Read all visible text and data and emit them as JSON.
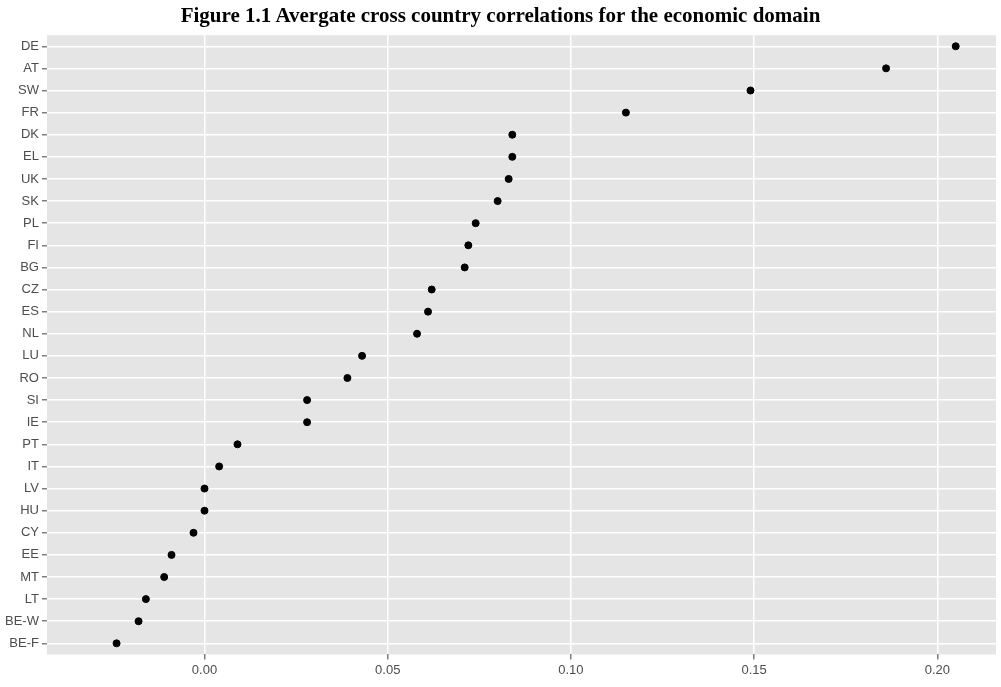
{
  "chart_data": {
    "type": "scatter",
    "title": "Figure 1.1 Avergate cross country correlations for the economic domain",
    "orientation": "horizontal",
    "categories": [
      "DE",
      "AT",
      "SW",
      "FR",
      "DK",
      "EL",
      "UK",
      "SK",
      "PL",
      "FI",
      "BG",
      "CZ",
      "ES",
      "NL",
      "LU",
      "RO",
      "SI",
      "IE",
      "PT",
      "IT",
      "LV",
      "HU",
      "CY",
      "EE",
      "MT",
      "LT",
      "BE-W",
      "BE-F"
    ],
    "values": [
      0.205,
      0.186,
      0.149,
      0.115,
      0.084,
      0.084,
      0.083,
      0.08,
      0.074,
      0.072,
      0.071,
      0.062,
      0.061,
      0.058,
      0.043,
      0.039,
      0.028,
      0.028,
      0.009,
      0.004,
      0.0,
      0.0,
      -0.003,
      -0.009,
      -0.011,
      -0.016,
      -0.018,
      -0.024
    ],
    "color": "#000000",
    "marker": "circle",
    "xlim": [
      -0.043,
      0.216
    ],
    "xticks": [
      {
        "value": 0,
        "label": "0.00"
      },
      {
        "value": 0.05,
        "label": "0.05"
      },
      {
        "value": 0.1,
        "label": "0.10"
      },
      {
        "value": 0.15,
        "label": "0.15"
      },
      {
        "value": 0.2,
        "label": "0.20"
      }
    ],
    "grid": true,
    "legend": false
  }
}
